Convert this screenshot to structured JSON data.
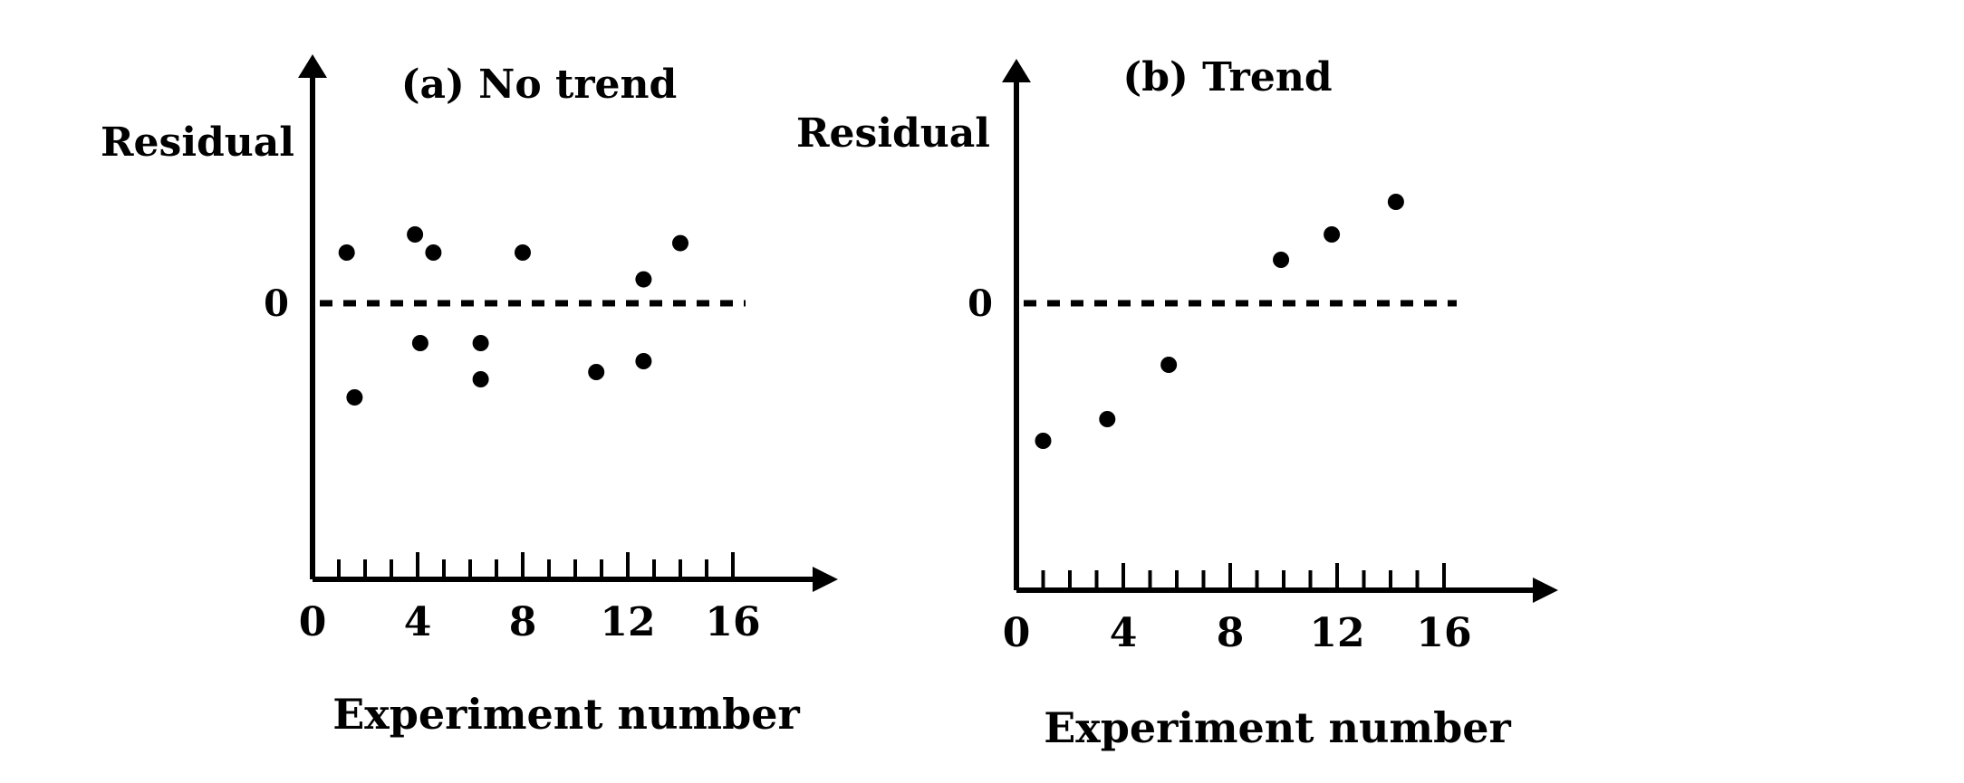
{
  "chart_data": [
    {
      "type": "scatter",
      "title": "(a) No trend",
      "xlabel": "Experiment number",
      "ylabel": "Residual",
      "zero_label": "0",
      "x_ticks": [
        0,
        4,
        8,
        12,
        16
      ],
      "xlim": [
        0,
        19
      ],
      "ylim": [
        -3.2,
        2.8
      ],
      "minor_tick_step": 1,
      "reference_line": {
        "y": 0,
        "style": "dashed"
      },
      "grid": false,
      "points": [
        {
          "x": 1.3,
          "y": 0.7
        },
        {
          "x": 1.6,
          "y": -1.3
        },
        {
          "x": 3.9,
          "y": 0.95
        },
        {
          "x": 4.1,
          "y": -0.55
        },
        {
          "x": 4.6,
          "y": 0.7
        },
        {
          "x": 6.4,
          "y": -0.55
        },
        {
          "x": 6.4,
          "y": -1.05
        },
        {
          "x": 8.0,
          "y": 0.7
        },
        {
          "x": 10.8,
          "y": -0.95
        },
        {
          "x": 12.6,
          "y": 0.33
        },
        {
          "x": 12.6,
          "y": -0.8
        },
        {
          "x": 14.0,
          "y": 0.83
        }
      ]
    },
    {
      "type": "scatter",
      "title": "(b) Trend",
      "xlabel": "Experiment number",
      "ylabel": "Residual",
      "zero_label": "0",
      "x_ticks": [
        0,
        4,
        8,
        12,
        16
      ],
      "xlim": [
        0,
        19
      ],
      "ylim": [
        -3.2,
        2.8
      ],
      "minor_tick_step": 1,
      "reference_line": {
        "y": 0,
        "style": "dashed"
      },
      "grid": false,
      "points": [
        {
          "x": 1.0,
          "y": -1.9
        },
        {
          "x": 3.4,
          "y": -1.6
        },
        {
          "x": 5.7,
          "y": -0.85
        },
        {
          "x": 9.9,
          "y": 0.6
        },
        {
          "x": 11.8,
          "y": 0.95
        },
        {
          "x": 14.2,
          "y": 1.4
        }
      ]
    }
  ]
}
